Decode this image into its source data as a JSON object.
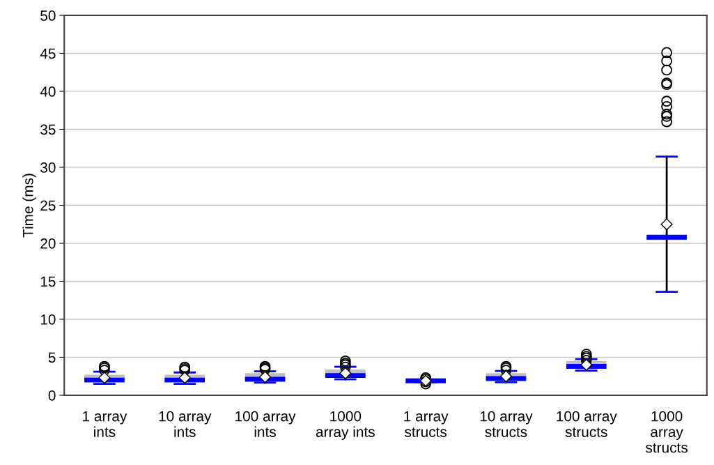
{
  "chart_data": {
    "type": "box",
    "ylabel": "Time (ms)",
    "categories": [
      "1 array\nints",
      "10 array\nints",
      "100 array\nints",
      "1000\narray ints",
      "1 array\nstructs",
      "10 array\nstructs",
      "100 array\nstructs",
      "1000\narray\nstructs"
    ],
    "boxes": [
      {
        "low": 1.5,
        "q1": 1.75,
        "median": 2.0,
        "q3": 2.7,
        "high": 3.1,
        "mean": 2.3,
        "outliers": [
          3.3,
          3.6,
          3.8
        ]
      },
      {
        "low": 1.5,
        "q1": 1.75,
        "median": 2.0,
        "q3": 2.7,
        "high": 3.0,
        "mean": 2.3,
        "outliers": [
          3.3,
          3.5,
          3.7
        ]
      },
      {
        "low": 1.65,
        "q1": 1.9,
        "median": 2.1,
        "q3": 2.9,
        "high": 3.15,
        "mean": 2.4,
        "outliers": [
          3.4,
          3.6,
          3.8
        ]
      },
      {
        "low": 2.1,
        "q1": 2.3,
        "median": 2.6,
        "q3": 3.4,
        "high": 3.75,
        "mean": 2.9,
        "outliers": [
          3.7,
          4.0,
          4.2,
          4.5
        ]
      },
      {
        "low": 1.7,
        "q1": 1.7,
        "median": 1.9,
        "q3": 2.0,
        "high": 2.0,
        "mean": 1.9,
        "outliers": [
          1.5,
          1.8,
          2.1,
          2.3
        ]
      },
      {
        "low": 1.7,
        "q1": 1.9,
        "median": 2.2,
        "q3": 2.9,
        "high": 3.2,
        "mean": 2.5,
        "outliers": [
          3.3,
          3.6,
          3.8
        ]
      },
      {
        "low": 3.25,
        "q1": 3.55,
        "median": 3.8,
        "q3": 4.5,
        "high": 4.75,
        "mean": 4.0,
        "outliers": [
          4.6,
          4.9,
          5.1,
          5.4
        ]
      },
      {
        "low": 13.6,
        "q1": 20.4,
        "median": 20.8,
        "q3": 21.0,
        "high": 31.4,
        "mean": 22.5,
        "outliers": [
          36.0,
          36.7,
          37.0,
          38.0,
          38.7,
          40.9,
          41.1,
          42.8,
          44.0,
          45.1
        ]
      }
    ],
    "color": "#c0c0c0",
    "ylim": [
      0,
      50
    ],
    "yticks": [
      0,
      5,
      10,
      15,
      20,
      25,
      30,
      35,
      40,
      45,
      50
    ],
    "grid": "y",
    "marker": "circle"
  }
}
